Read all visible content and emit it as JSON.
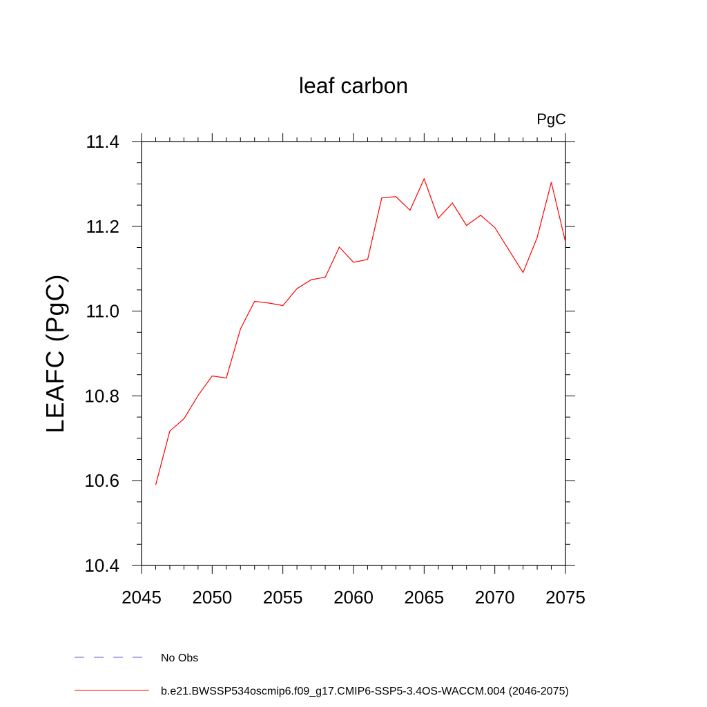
{
  "chart_data": {
    "type": "line",
    "title": "leaf carbon",
    "units": "PgC",
    "ylabel": "LEAFC  (PgC)",
    "xlabel": "",
    "xlim": [
      2045,
      2075
    ],
    "ylim": [
      10.4,
      11.4
    ],
    "x_ticks": [
      "2045",
      "2050",
      "2055",
      "2060",
      "2065",
      "2070",
      "2075"
    ],
    "y_ticks": [
      "10.4",
      "10.6",
      "10.8",
      "11.0",
      "11.2",
      "11.4"
    ],
    "grid": false,
    "legend_position": "bottom-left",
    "series": [
      {
        "name": "b.e21.BWSSP534oscmip6.f09_g17.CMIP6-SSP5-3.4OS-WACCM.004 (2046-2075)",
        "color": "#ff0000",
        "style": "solid",
        "x": [
          2046,
          2047,
          2048,
          2049,
          2050,
          2051,
          2052,
          2053,
          2054,
          2055,
          2056,
          2057,
          2058,
          2059,
          2060,
          2061,
          2062,
          2063,
          2064,
          2065,
          2066,
          2067,
          2068,
          2069,
          2070,
          2071,
          2072,
          2073,
          2074,
          2075
        ],
        "y": [
          10.59,
          10.717,
          10.746,
          10.801,
          10.847,
          10.842,
          10.958,
          11.023,
          11.019,
          11.013,
          11.053,
          11.074,
          11.08,
          11.151,
          11.115,
          11.122,
          11.267,
          11.27,
          11.238,
          11.312,
          11.219,
          11.255,
          11.202,
          11.226,
          11.197,
          11.144,
          11.091,
          11.174,
          11.304,
          11.163
        ]
      }
    ],
    "legend": [
      {
        "label": "No Obs",
        "color": "#6a5acd",
        "style": "dashed"
      },
      {
        "label": "b.e21.BWSSP534oscmip6.f09_g17.CMIP6-SSP5-3.4OS-WACCM.004 (2046-2075)",
        "color": "#ff0000",
        "style": "solid"
      }
    ]
  }
}
